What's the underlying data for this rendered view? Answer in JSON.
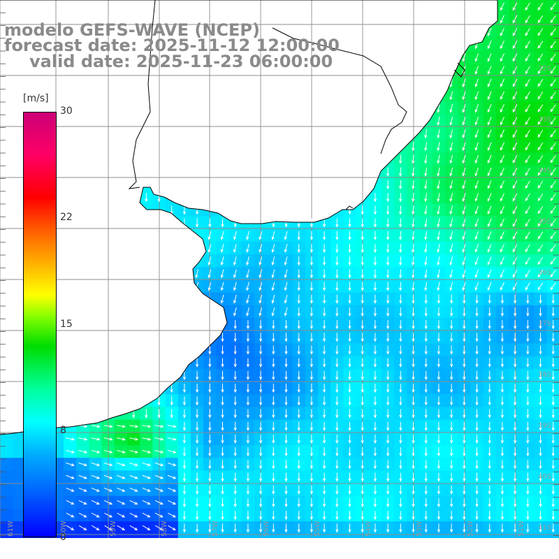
{
  "title": {
    "line1": "modelo GEFS-WAVE (NCEP)",
    "line2": "forecast date: 2025-11-12 12:00:00",
    "line3": "valid date: 2025-11-23 06:00:00"
  },
  "colorbar": {
    "unit": "[m/s]",
    "ticks": [
      {
        "label": "30",
        "value": 30
      },
      {
        "label": "22",
        "value": 22
      },
      {
        "label": "15",
        "value": 15
      },
      {
        "label": "8",
        "value": 8
      },
      {
        "label": "0",
        "value": 0
      }
    ],
    "min": 0,
    "max": 30
  },
  "grid": {
    "lat_labels": [
      "32S",
      "33S",
      "34S",
      "35S",
      "36S",
      "37S",
      "38S",
      "39S",
      "40S",
      "41S"
    ],
    "lon_labels": [
      "61W",
      "60W",
      "59W",
      "58W",
      "57W",
      "56W",
      "55W",
      "54W",
      "53W",
      "52W",
      "51W"
    ]
  },
  "colors": {
    "land": "#ffffff",
    "coast": "#000000",
    "grid": "#8c8c8c",
    "arrow": "#ffffff",
    "title": "#8a8a8a"
  },
  "wind_field": {
    "description_units": "m/s",
    "typical_speed_range": [
      4,
      14
    ],
    "dominant_direction": "toward S / SSW"
  }
}
